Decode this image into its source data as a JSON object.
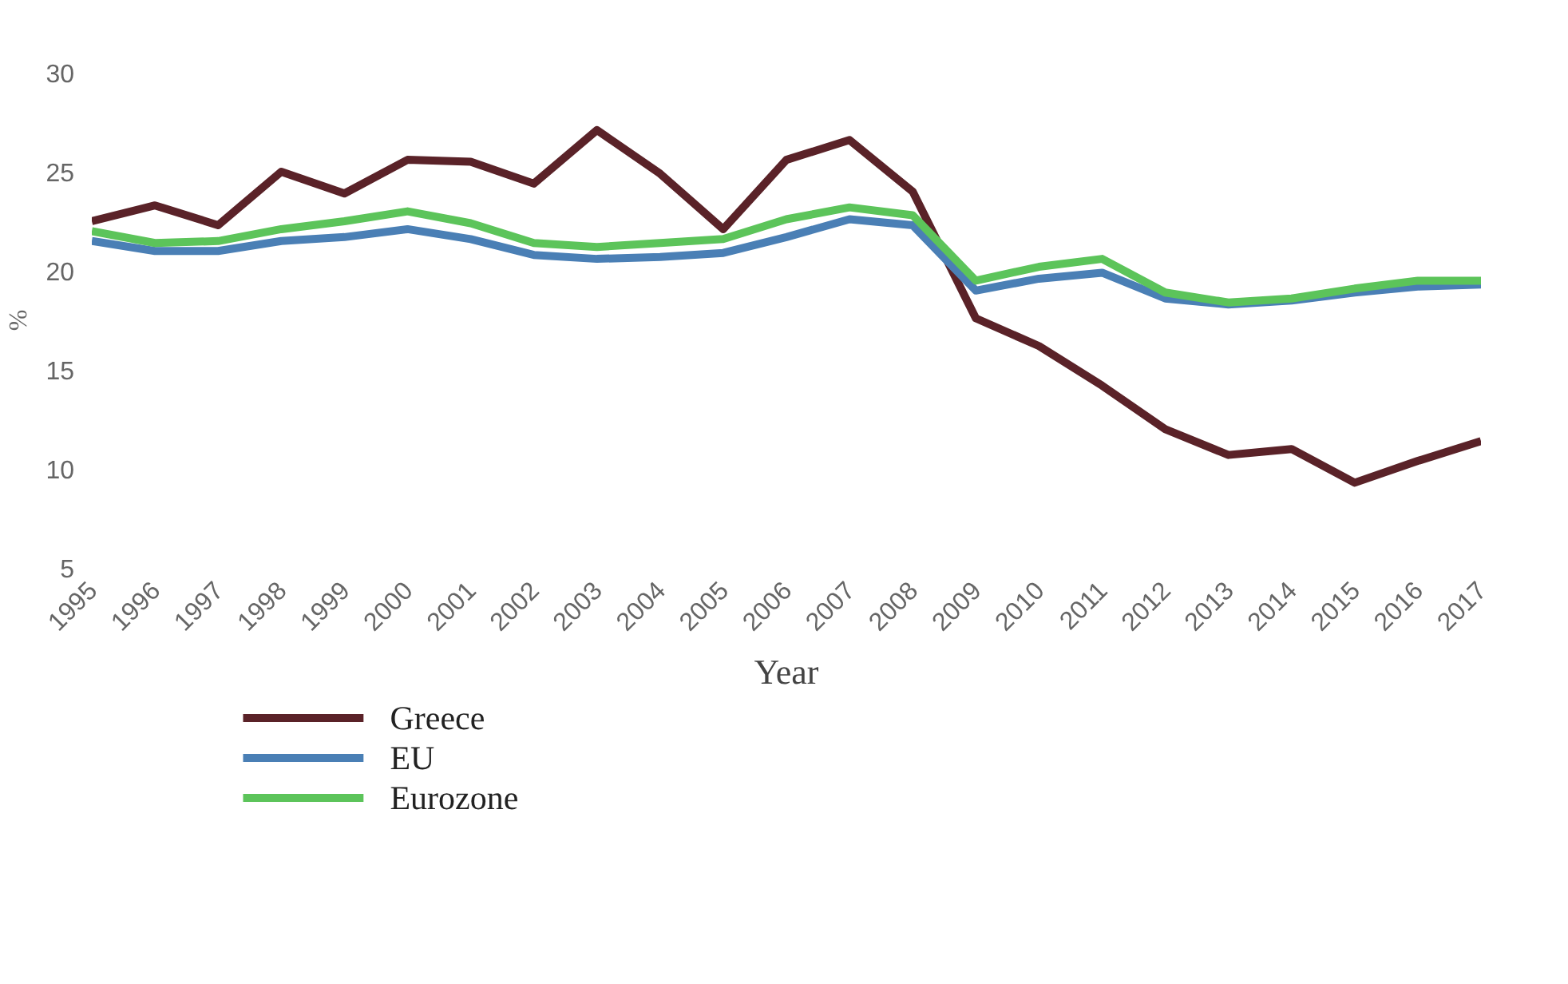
{
  "chart_data": {
    "type": "line",
    "xlabel": "Year",
    "ylabel": "%",
    "x": [
      1995,
      1996,
      1997,
      1998,
      1999,
      2000,
      2001,
      2002,
      2003,
      2004,
      2005,
      2006,
      2007,
      2008,
      2009,
      2010,
      2011,
      2012,
      2013,
      2014,
      2015,
      2016,
      2017
    ],
    "series": [
      {
        "name": "Greece",
        "color": "#5a2228",
        "values": [
          22.5,
          23.3,
          22.3,
          25.0,
          23.9,
          25.6,
          25.5,
          24.4,
          27.1,
          24.9,
          22.1,
          25.6,
          26.6,
          24.0,
          17.6,
          16.2,
          14.2,
          12.0,
          10.7,
          11.0,
          9.3,
          10.4,
          11.4
        ]
      },
      {
        "name": "EU",
        "color": "#4a7fb5",
        "values": [
          21.5,
          21.0,
          21.0,
          21.5,
          21.7,
          22.1,
          21.6,
          20.8,
          20.6,
          20.7,
          20.9,
          21.7,
          22.6,
          22.3,
          19.0,
          19.6,
          19.9,
          18.6,
          18.3,
          18.5,
          18.9,
          19.2,
          19.3
        ]
      },
      {
        "name": "Eurozone",
        "color": "#5cc45a",
        "values": [
          22.0,
          21.4,
          21.5,
          22.1,
          22.5,
          23.0,
          22.4,
          21.4,
          21.2,
          21.4,
          21.6,
          22.6,
          23.2,
          22.8,
          19.5,
          20.2,
          20.6,
          18.9,
          18.4,
          18.6,
          19.1,
          19.5,
          19.5
        ]
      }
    ],
    "xlim": [
      1995,
      2017
    ],
    "xticks": [
      1995,
      1996,
      1997,
      1998,
      1999,
      2000,
      2001,
      2002,
      2003,
      2004,
      2005,
      2006,
      2007,
      2008,
      2009,
      2010,
      2011,
      2012,
      2013,
      2014,
      2015,
      2016,
      2017
    ],
    "ylim": [
      5,
      30
    ],
    "yticks": [
      5,
      10,
      15,
      20,
      25,
      30
    ],
    "grid": false,
    "legend": "bottom left",
    "marker": "none",
    "line_style": "solid"
  }
}
